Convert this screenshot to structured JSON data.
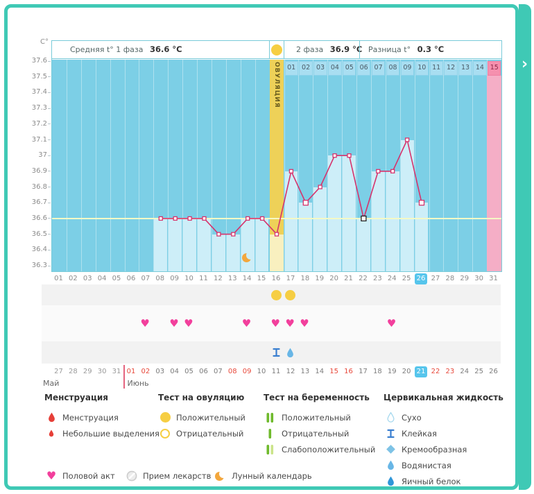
{
  "side_panel_arrow": "›",
  "colors": {
    "teal": "#3fc9b5",
    "chart_bg": "#7ccfe6",
    "bar": "#cdeef8",
    "line": "#d6336c",
    "coverline": "#f4f9c5",
    "band_yellow": "#eed158",
    "band_yellow_light": "#f9f0bf",
    "band_pink": "#f5aec6",
    "today": "#56c5ec",
    "weekend": "#e8493b",
    "heart": "#f23f9c",
    "test_yellow": "#f6ce43",
    "moon": "#f3a73d",
    "green": "#6fba2c",
    "green_light": "#cbe48a",
    "drop_red": "#e63f38",
    "blue_sticky": "#3a7fd0",
    "blue_watery": "#68b6e6",
    "blue_egg": "#2f96d8",
    "blue_creamy": "#7ec3e6",
    "blue_dry": "#a5d8ee"
  },
  "header": {
    "unit": "С°",
    "avg1_label": "Средняя t° 1 фаза",
    "avg1_value": "36.6 °C",
    "phase2_label": "2 фаза",
    "phase2_value": "36.9 °C",
    "diff_label": "Разница t°",
    "diff_value": "0.3 °C"
  },
  "chart_data": {
    "type": "line+bar",
    "y_unit": "С°",
    "ylim": [
      36.3,
      37.6
    ],
    "yticks": [
      "37.6",
      "37.5",
      "37.4",
      "37.3",
      "37.2",
      "37.1",
      "37",
      "36.9",
      "36.8",
      "36.7",
      "36.6",
      "36.5",
      "36.4",
      "36.3"
    ],
    "coverline": 36.6,
    "cycle_days": [
      "01",
      "02",
      "03",
      "04",
      "05",
      "06",
      "07",
      "08",
      "09",
      "10",
      "11",
      "12",
      "13",
      "14",
      "15",
      "16",
      "17",
      "18",
      "19",
      "20",
      "21",
      "22",
      "23",
      "24",
      "25",
      "26",
      "27",
      "28",
      "29",
      "30",
      "31"
    ],
    "today_cycle_day": 26,
    "ovulation": {
      "day": 16,
      "label": "ОВУЛЯЦИЯ"
    },
    "dpo_labels": [
      "01",
      "02",
      "03",
      "04",
      "05",
      "06",
      "07",
      "08",
      "09",
      "10",
      "11",
      "12",
      "13",
      "14",
      "15"
    ],
    "expected_period_cycle_day": 31,
    "temps": [
      {
        "day": 8,
        "t": 36.6
      },
      {
        "day": 9,
        "t": 36.6
      },
      {
        "day": 10,
        "t": 36.6
      },
      {
        "day": 11,
        "t": 36.6
      },
      {
        "day": 12,
        "t": 36.5
      },
      {
        "day": 13,
        "t": 36.5
      },
      {
        "day": 14,
        "t": 36.6
      },
      {
        "day": 15,
        "t": 36.6
      },
      {
        "day": 16,
        "t": 36.5
      },
      {
        "day": 17,
        "t": 36.9
      },
      {
        "day": 18,
        "t": 36.7,
        "marker": "square"
      },
      {
        "day": 19,
        "t": 36.8
      },
      {
        "day": 20,
        "t": 37.0
      },
      {
        "day": 21,
        "t": 37.0
      },
      {
        "day": 22,
        "t": 36.6,
        "marker": "square-black"
      },
      {
        "day": 23,
        "t": 36.9
      },
      {
        "day": 24,
        "t": 36.9
      },
      {
        "day": 25,
        "t": 37.1
      },
      {
        "day": 26,
        "t": 36.7,
        "marker": "square"
      }
    ],
    "moon_day": 14,
    "ovulation_test_positive_days": [
      16,
      17
    ],
    "intercourse_days": [
      7,
      9,
      10,
      14,
      16,
      17,
      18,
      24
    ],
    "cervical_fluid": [
      {
        "day": 16,
        "type": "sticky"
      },
      {
        "day": 17,
        "type": "watery"
      }
    ],
    "calendar": {
      "months": [
        {
          "label": "Май",
          "days": 5
        },
        {
          "label": "Июнь",
          "days": 26
        }
      ],
      "dates": [
        "27",
        "28",
        "29",
        "30",
        "31",
        "01",
        "02",
        "03",
        "04",
        "05",
        "06",
        "07",
        "08",
        "09",
        "10",
        "11",
        "12",
        "13",
        "14",
        "15",
        "16",
        "17",
        "18",
        "19",
        "20",
        "21",
        "22",
        "23",
        "24",
        "25",
        "26"
      ],
      "weekend_indices": [
        5,
        6,
        12,
        13,
        19,
        20,
        26,
        27
      ],
      "today_index": 25
    }
  },
  "legend": {
    "columns": [
      {
        "title": "Менструация",
        "items": [
          {
            "icon": "drop-red",
            "label": "Менструация"
          },
          {
            "icon": "drop-red-small",
            "label": "Небольшие выделения"
          }
        ]
      },
      {
        "title": "Тест на овуляцию",
        "items": [
          {
            "icon": "circle-yellow",
            "label": "Положительный"
          },
          {
            "icon": "circle-yellow-outline",
            "label": "Отрицательный"
          }
        ]
      },
      {
        "title": "Тест на беременность",
        "items": [
          {
            "icon": "strip-2",
            "label": "Положительный"
          },
          {
            "icon": "strip-1",
            "label": "Отрицательный"
          },
          {
            "icon": "strip-weak",
            "label": "Слабоположительный"
          }
        ]
      },
      {
        "title": "Цервикальная жидкость",
        "items": [
          {
            "icon": "drop-outline",
            "label": "Сухо"
          },
          {
            "icon": "sticky",
            "label": "Клейкая"
          },
          {
            "icon": "diamond",
            "label": "Кремообразная"
          },
          {
            "icon": "drop-watery",
            "label": "Водянистая"
          },
          {
            "icon": "drop-egg",
            "label": "Яичный белок"
          }
        ]
      }
    ],
    "bottom": [
      {
        "icon": "heart",
        "label": "Половой акт"
      },
      {
        "icon": "no-meds",
        "label": "Прием лекарств"
      },
      {
        "icon": "moon",
        "label": "Лунный календарь"
      }
    ]
  }
}
